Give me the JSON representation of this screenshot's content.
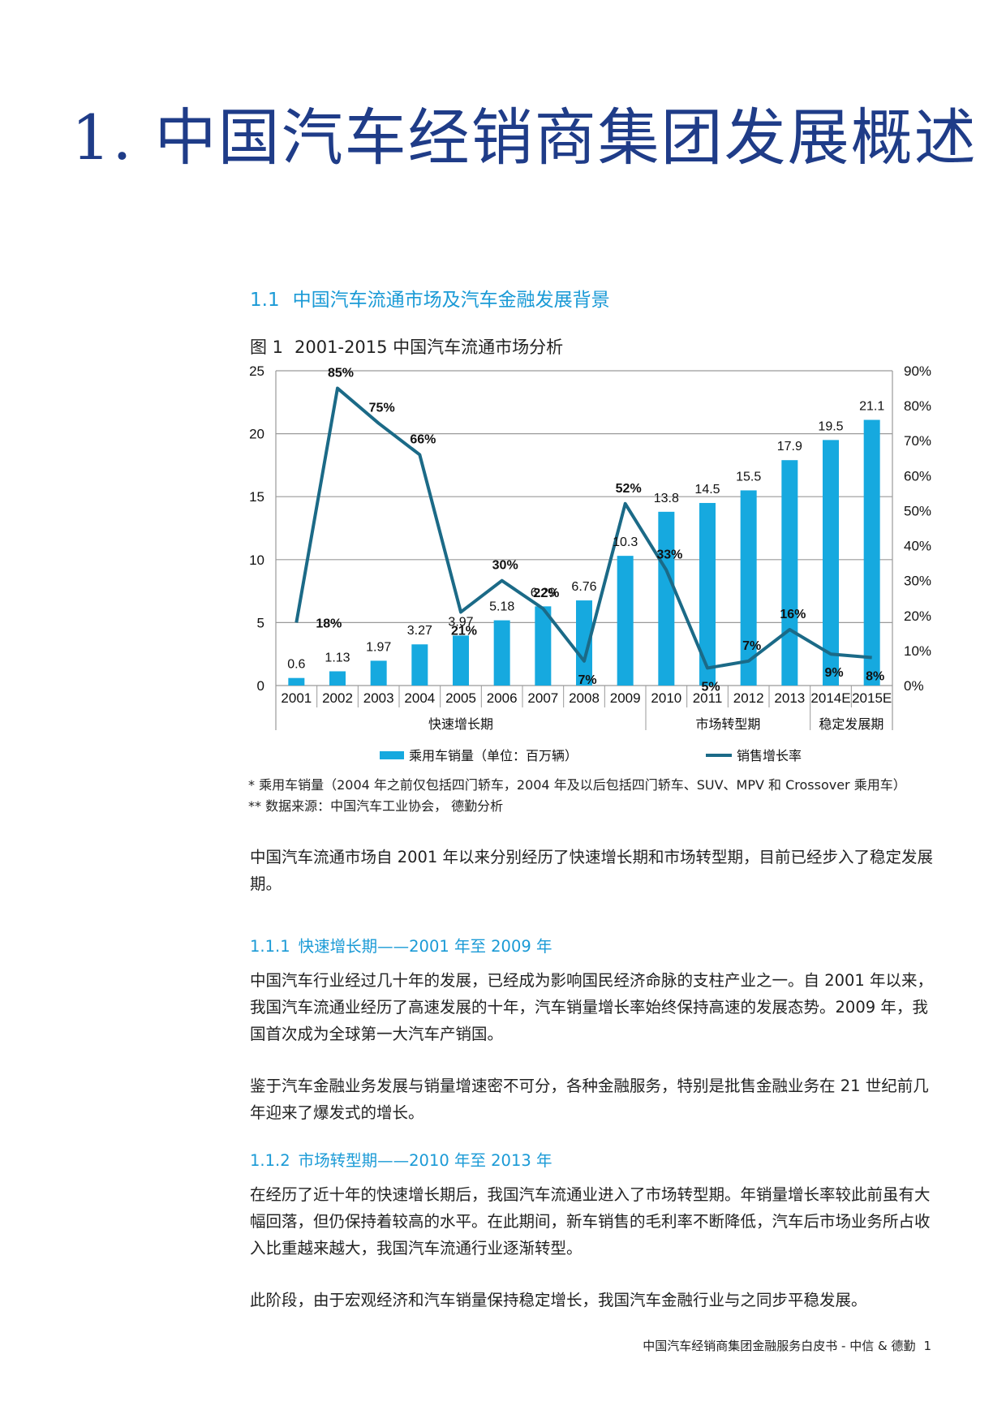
{
  "page": {
    "chapter_title": "1. 中国汽车经销商集团发展概述",
    "section": {
      "number": "1.1",
      "title": "中国汽车流通市场及汽车金融发展背景"
    },
    "figure": {
      "number": "图 1",
      "title": "2001-2015 中国汽车流通市场分析"
    },
    "notes": [
      "* 乘用车销量（2004 年之前仅包括四门轿车，2004 年及以后包括四门轿车、SUV、MPV 和 Crossover 乘用车）",
      "** 数据来源：中国汽车工业协会， 德勤分析"
    ],
    "intro": "中国汽车流通市场自 2001 年以来分别经历了快速增长期和市场转型期，目前已经步入了稳定发展期。",
    "sub1": {
      "number": "1.1.1",
      "title": "快速增长期——2001 年至 2009 年",
      "paragraphs": [
        "中国汽车行业经过几十年的发展，已经成为影响国民经济命脉的支柱产业之一。自 2001 年以来，我国汽车流通业经历了高速发展的十年，汽车销量增长率始终保持高速的发展态势。2009 年，我国首次成为全球第一大汽车产销国。",
        "鉴于汽车金融业务发展与销量增速密不可分，各种金融服务，特别是批售金融业务在 21 世纪前几年迎来了爆发式的增长。"
      ]
    },
    "sub2": {
      "number": "1.1.2",
      "title": "市场转型期——2010 年至 2013 年",
      "paragraphs": [
        "在经历了近十年的快速增长期后，我国汽车流通业进入了市场转型期。年销量增长率较此前虽有大幅回落，但仍保持着较高的水平。在此期间，新车销售的毛利率不断降低，汽车后市场业务所占收入比重越来越大，我国汽车流通行业逐渐转型。",
        "此阶段，由于宏观经济和汽车销量保持稳定增长，我国汽车金融行业与之同步平稳发展。"
      ]
    },
    "footer": {
      "text": "中国汽车经销商集团金融服务白皮书 - 中信 & 德勤",
      "page": "1"
    }
  },
  "chart_data": {
    "type": "bar+line",
    "title": "2001-2015 中国汽车流通市场分析",
    "categories": [
      "2001",
      "2002",
      "2003",
      "2004",
      "2005",
      "2006",
      "2007",
      "2008",
      "2009",
      "2010",
      "2011",
      "2012",
      "2013",
      "2014E",
      "2015E"
    ],
    "series": [
      {
        "name": "乘用车销量（单位：百万辆）",
        "type": "bar",
        "axis": "left",
        "color": "#16a9df",
        "values": [
          0.6,
          1.13,
          1.97,
          3.27,
          3.97,
          5.18,
          6.29,
          6.76,
          10.3,
          13.8,
          14.5,
          15.5,
          17.9,
          19.5,
          21.1
        ],
        "labels": [
          "0.6",
          "1.13",
          "1.97",
          "3.27",
          "3.97",
          "5.18",
          "6.29",
          "6.76",
          "10.3",
          "13.8",
          "14.5",
          "15.5",
          "17.9",
          "19.5",
          "21.1"
        ]
      },
      {
        "name": "销售增长率",
        "type": "line",
        "axis": "right",
        "color": "#1b6a87",
        "values": [
          18,
          85,
          75,
          66,
          21,
          30,
          22,
          7,
          52,
          33,
          5,
          7,
          16,
          9,
          8
        ],
        "labels": [
          "18%",
          "85%",
          "75%",
          "66%",
          "21%",
          "30%",
          "22%",
          "7%",
          "52%",
          "33%",
          "5%",
          "7%",
          "16%",
          "9%",
          "8%"
        ]
      }
    ],
    "left_axis": {
      "min": 0,
      "max": 25,
      "ticks": [
        "0",
        "5",
        "10",
        "15",
        "20",
        "25"
      ]
    },
    "right_axis": {
      "min": 0,
      "max": 90,
      "ticks": [
        "0%",
        "10%",
        "20%",
        "30%",
        "40%",
        "50%",
        "60%",
        "70%",
        "80%",
        "90%"
      ]
    },
    "periods": [
      {
        "label": "快速增长期",
        "from": 0,
        "to": 8
      },
      {
        "label": "市场转型期",
        "from": 9,
        "to": 12
      },
      {
        "label": "稳定发展期",
        "from": 13,
        "to": 14
      }
    ],
    "gridlines": "horizontal",
    "legend_position": "bottom"
  }
}
